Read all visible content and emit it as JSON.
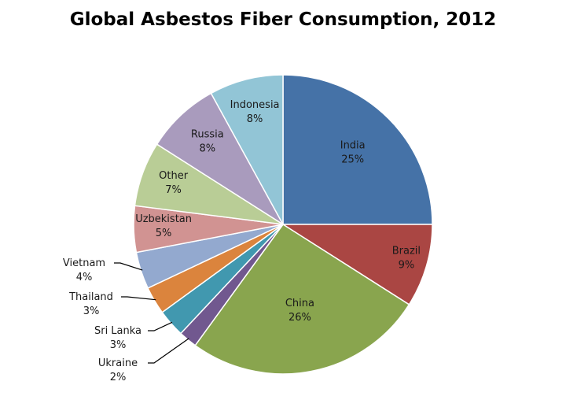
{
  "chart_data": {
    "type": "pie",
    "title": "Global Asbestos Fiber Consumption, 2012",
    "slices": [
      {
        "name": "India",
        "value": 25,
        "label": "25%",
        "color": "#4572a7"
      },
      {
        "name": "Brazil",
        "value": 9,
        "label": "9%",
        "color": "#aa4643"
      },
      {
        "name": "China",
        "value": 26,
        "label": "26%",
        "color": "#89a54e"
      },
      {
        "name": "Ukraine",
        "value": 2,
        "label": "2%",
        "color": "#71588f"
      },
      {
        "name": "Sri Lanka",
        "value": 3,
        "label": "3%",
        "color": "#4198af"
      },
      {
        "name": "Thailand",
        "value": 3,
        "label": "3%",
        "color": "#db843d"
      },
      {
        "name": "Vietnam",
        "value": 4,
        "label": "4%",
        "color": "#93a9cf"
      },
      {
        "name": "Uzbekistan",
        "value": 5,
        "label": "5%",
        "color": "#d19392"
      },
      {
        "name": "Other",
        "value": 7,
        "label": "7%",
        "color": "#b9cd96"
      },
      {
        "name": "Russia",
        "value": 8,
        "label": "8%",
        "color": "#a99bbd"
      },
      {
        "name": "Indonesia",
        "value": 8,
        "label": "8%",
        "color": "#92c5d6"
      }
    ]
  }
}
